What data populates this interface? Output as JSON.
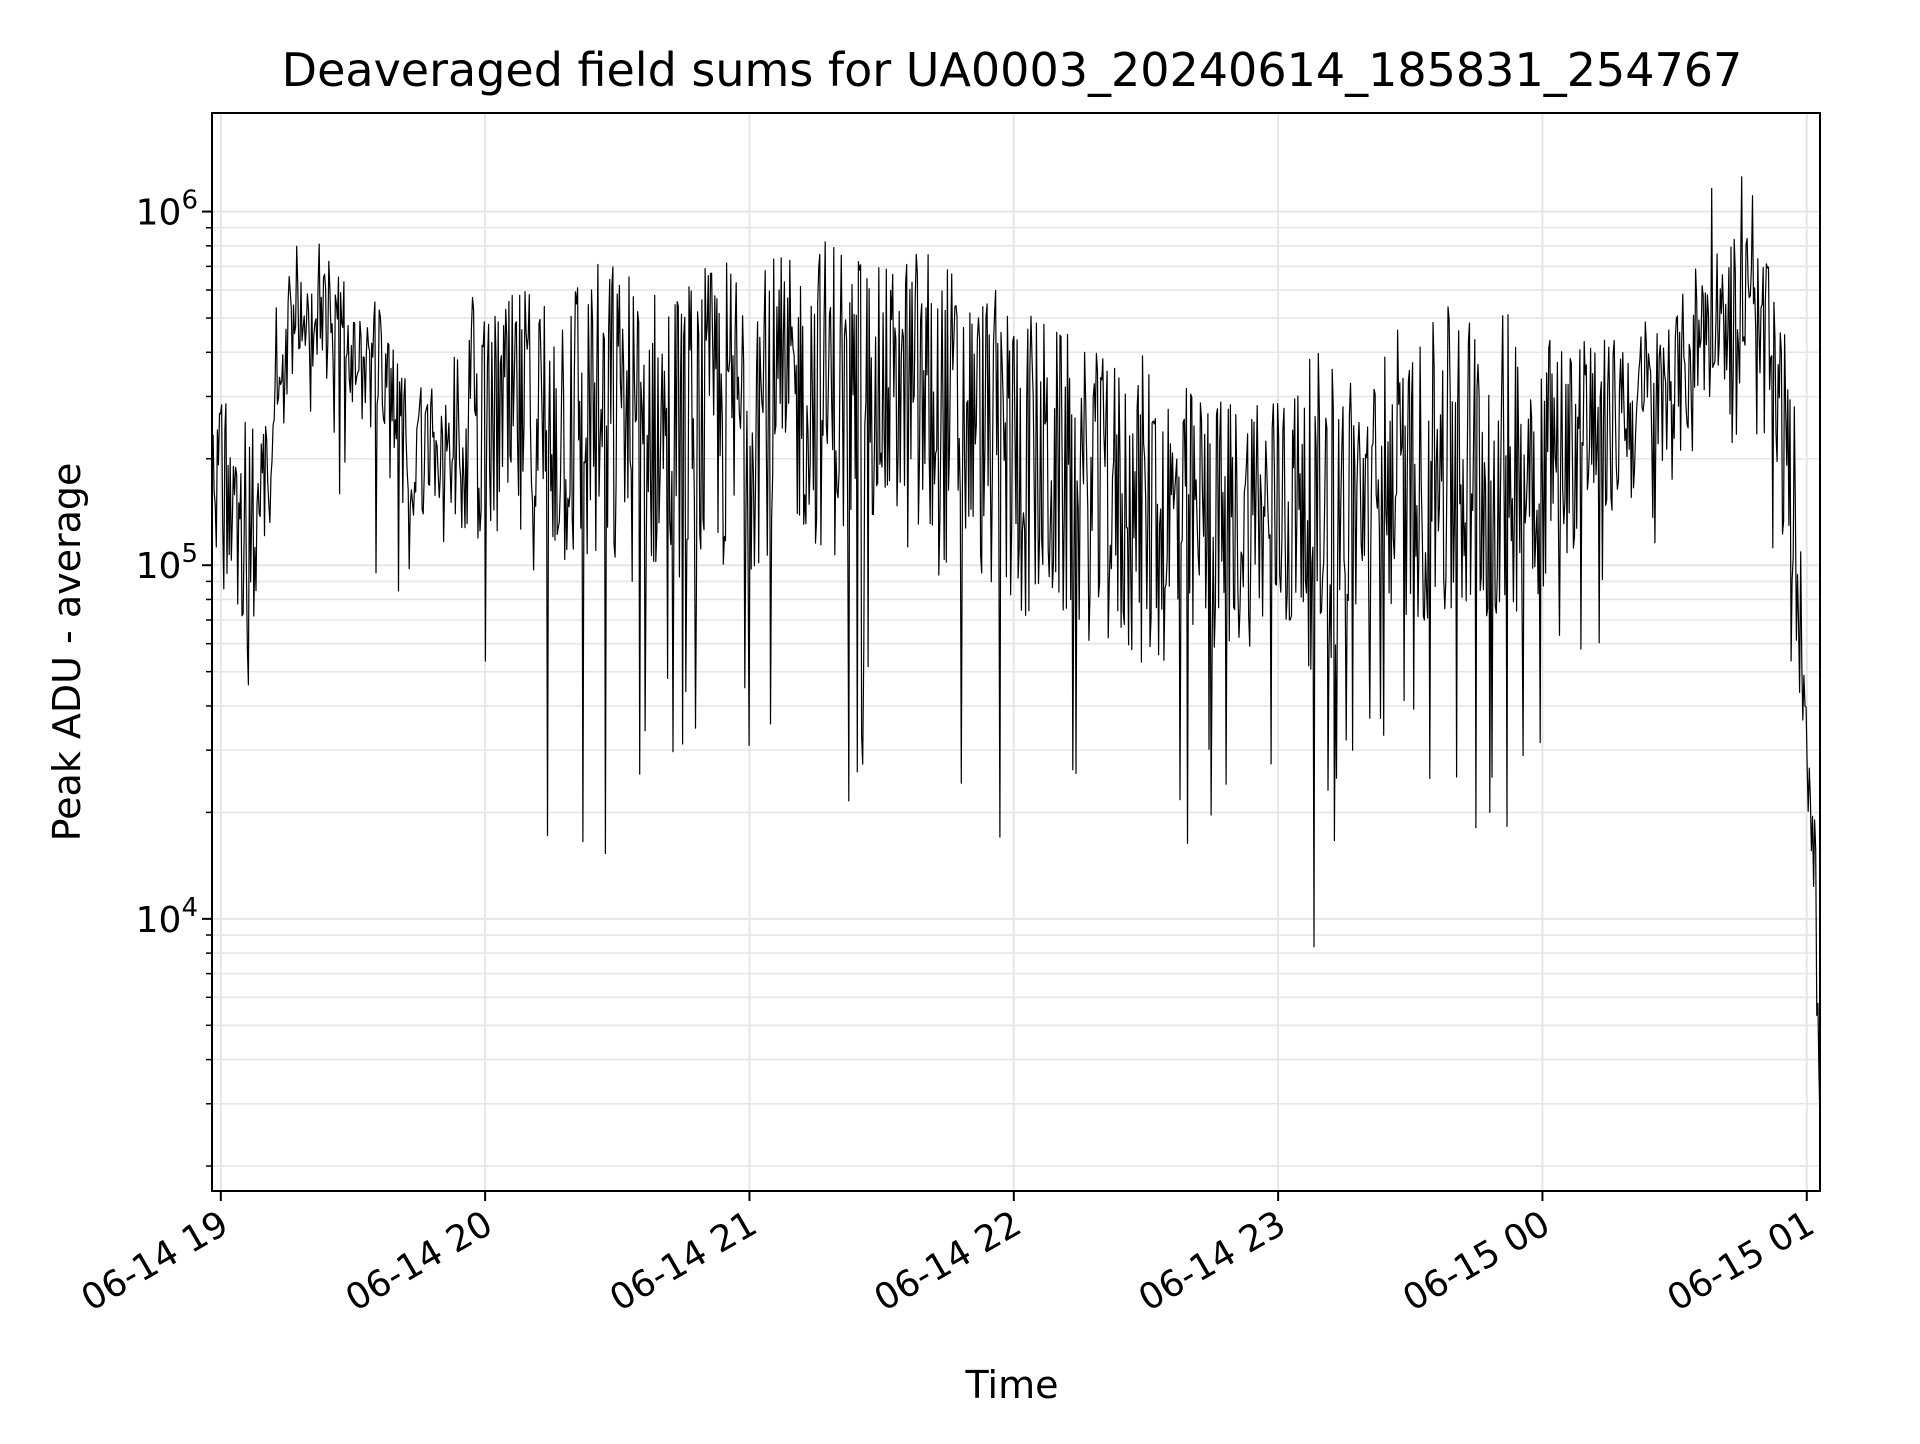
{
  "chart_data": {
    "type": "line",
    "title": "Deaveraged field sums for UA0003_20240614_185831_254767",
    "xlabel": "Time",
    "ylabel": "Peak ADU - average",
    "x_scale": "time",
    "y_scale": "log",
    "xlim": [
      "2024-06-14 18:58",
      "2024-06-15 01:03"
    ],
    "ylim": [
      1700,
      1900000
    ],
    "grid": true,
    "legend": "none",
    "x_ticks": [
      "06-14 19",
      "06-14 20",
      "06-14 21",
      "06-14 22",
      "06-14 23",
      "06-15 00",
      "06-15 01"
    ],
    "y_ticks": [
      {
        "value": 10000,
        "base": "10",
        "exp": "4"
      },
      {
        "value": 100000,
        "base": "10",
        "exp": "5"
      },
      {
        "value": 1000000,
        "base": "10",
        "exp": "6"
      }
    ],
    "line_color": "#000000",
    "grid_color": "#e6e6e6",
    "series": [
      {
        "x": [
          "2024-06-14 18:58",
          "2024-06-14 19:00",
          "2024-06-14 19:03",
          "2024-06-14 19:07",
          "2024-06-14 19:10",
          "2024-06-14 19:13",
          "2024-06-14 19:16",
          "2024-06-14 19:20",
          "2024-06-14 19:25",
          "2024-06-14 19:30",
          "2024-06-14 19:35",
          "2024-06-14 19:40",
          "2024-06-14 19:45",
          "2024-06-14 19:50",
          "2024-06-14 19:55",
          "2024-06-14 20:00",
          "2024-06-14 20:10",
          "2024-06-14 20:20",
          "2024-06-14 20:30",
          "2024-06-14 20:40",
          "2024-06-14 20:50",
          "2024-06-14 21:00",
          "2024-06-14 21:10",
          "2024-06-14 21:20",
          "2024-06-14 21:30",
          "2024-06-14 21:40",
          "2024-06-14 21:50",
          "2024-06-14 22:00",
          "2024-06-14 22:10",
          "2024-06-14 22:20",
          "2024-06-14 22:30",
          "2024-06-14 22:40",
          "2024-06-14 22:50",
          "2024-06-14 23:00",
          "2024-06-14 23:10",
          "2024-06-14 23:20",
          "2024-06-14 23:30",
          "2024-06-14 23:40",
          "2024-06-14 23:50",
          "2024-06-15 00:00",
          "2024-06-15 00:10",
          "2024-06-15 00:20",
          "2024-06-15 00:30",
          "2024-06-15 00:35",
          "2024-06-15 00:40",
          "2024-06-15 00:45",
          "2024-06-15 00:50",
          "2024-06-15 00:55",
          "2024-06-15 00:58",
          "2024-06-15 01:00",
          "2024-06-15 01:02",
          "2024-06-15 01:03"
        ],
        "y": [
          150000,
          200000,
          130000,
          120000,
          150000,
          300000,
          450000,
          500000,
          480000,
          420000,
          360000,
          250000,
          200000,
          220000,
          230000,
          240000,
          250000,
          260000,
          250000,
          240000,
          250000,
          280000,
          300000,
          310000,
          300000,
          280000,
          250000,
          200000,
          180000,
          150000,
          140000,
          130000,
          130000,
          140000,
          140000,
          160000,
          170000,
          180000,
          190000,
          200000,
          230000,
          260000,
          300000,
          450000,
          550000,
          520000,
          400000,
          230000,
          90000,
          35000,
          15000,
          2100
        ],
        "spike_max": [
          380000,
          330000,
          600000,
          500000,
          600000,
          600000,
          930000,
          900000,
          750000,
          500000,
          400000,
          400000,
          380000,
          480000,
          550000,
          640000,
          500000,
          580000,
          750000,
          780000,
          780000,
          800000,
          750000,
          950000,
          600000,
          560000,
          500000,
          500000,
          400000,
          420000,
          350000,
          320000,
          300000,
          300000,
          320000,
          400000,
          500000,
          650000,
          700000,
          500000,
          500000,
          600000,
          700000,
          1300000,
          1200000,
          1350000,
          1100000,
          700000,
          200000,
          70000,
          30000,
          5000
        ],
        "spike_min": [
          80000,
          60000,
          40000,
          26000,
          100000,
          200000,
          300000,
          280000,
          180000,
          120000,
          75000,
          70000,
          85000,
          100000,
          60000,
          45000,
          16000,
          13000,
          14000,
          26000,
          18000,
          16000,
          30000,
          17000,
          30000,
          9000,
          18000,
          9500,
          12000,
          13000,
          8000,
          12000,
          15000,
          16000,
          6000,
          30000,
          20000,
          10000,
          16000,
          20000,
          50000,
          80000,
          100000,
          200000,
          280000,
          170000,
          100000,
          50000,
          25000,
          14000,
          5000,
          2000
        ]
      }
    ]
  }
}
